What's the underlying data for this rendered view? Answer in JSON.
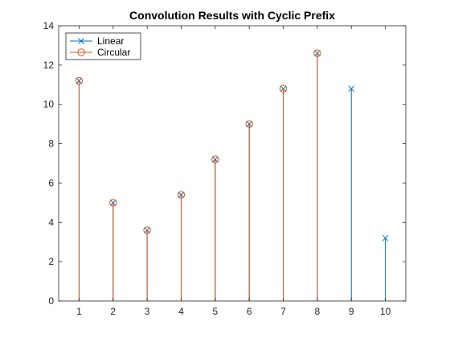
{
  "chart_data": {
    "type": "stem",
    "title": "Convolution Results with Cyclic Prefix",
    "xlabel": "",
    "ylabel": "",
    "xlim": [
      0.4,
      10.6
    ],
    "ylim": [
      0,
      14
    ],
    "xticks": [
      1,
      2,
      3,
      4,
      5,
      6,
      7,
      8,
      9,
      10
    ],
    "yticks": [
      0,
      2,
      4,
      6,
      8,
      10,
      12,
      14
    ],
    "grid": false,
    "legend_location": "top-left",
    "series": [
      {
        "name": "Linear",
        "marker": "x",
        "color": "#0072BD",
        "x": [
          1,
          2,
          3,
          4,
          5,
          6,
          7,
          8,
          9,
          10
        ],
        "y": [
          11.2,
          5.0,
          3.6,
          5.4,
          7.2,
          9.0,
          10.8,
          12.6,
          10.8,
          3.2
        ]
      },
      {
        "name": "Circular",
        "marker": "o",
        "color": "#D95319",
        "x": [
          1,
          2,
          3,
          4,
          5,
          6,
          7,
          8
        ],
        "y": [
          11.2,
          5.0,
          3.6,
          5.4,
          7.2,
          9.0,
          10.8,
          12.6
        ]
      }
    ]
  }
}
